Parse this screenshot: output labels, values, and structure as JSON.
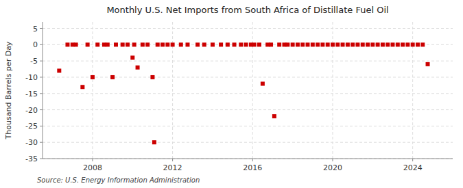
{
  "chart_data": {
    "type": "scatter",
    "title": "Monthly U.S. Net Imports from South Africa of Distillate Fuel Oil",
    "y_label": "Thousand Barrels per Day",
    "source": "Source: U.S. Energy Information Administration",
    "color": "#cc0000",
    "marker": "square",
    "grid": true,
    "xlim": [
      2005.5,
      2026.0
    ],
    "ylim": [
      -35,
      7
    ],
    "xticks": [
      2008,
      2012,
      2016,
      2020,
      2024
    ],
    "yticks": [
      5,
      0,
      -5,
      -10,
      -15,
      -20,
      -25,
      -30,
      -35
    ],
    "x": [
      2006.333,
      2006.75,
      2007.0,
      2007.167,
      2007.5,
      2007.75,
      2008.0,
      2008.25,
      2008.583,
      2008.75,
      2009.0,
      2009.167,
      2009.5,
      2009.75,
      2010.0,
      2010.083,
      2010.25,
      2010.5,
      2010.75,
      2011.0,
      2011.083,
      2011.25,
      2011.5,
      2011.75,
      2012.0,
      2012.417,
      2012.75,
      2013.25,
      2013.583,
      2014.0,
      2014.417,
      2014.75,
      2015.083,
      2015.417,
      2015.667,
      2015.917,
      2016.083,
      2016.333,
      2016.5,
      2016.75,
      2016.917,
      2017.083,
      2017.333,
      2017.583,
      2017.75,
      2018.0,
      2018.25,
      2018.5,
      2018.75,
      2019.0,
      2019.25,
      2019.5,
      2019.75,
      2020.0,
      2020.25,
      2020.5,
      2020.75,
      2021.0,
      2021.25,
      2021.5,
      2021.75,
      2022.0,
      2022.25,
      2022.5,
      2022.75,
      2023.0,
      2023.25,
      2023.5,
      2023.75,
      2024.0,
      2024.25,
      2024.5,
      2024.75
    ],
    "values": [
      -8,
      0,
      0,
      0,
      -13,
      0,
      -10,
      0,
      0,
      0,
      -10,
      0,
      0,
      0,
      -4,
      0,
      -7,
      0,
      0,
      -10,
      -30,
      0,
      0,
      0,
      0,
      0,
      0,
      0,
      0,
      0,
      0,
      0,
      0,
      0,
      0,
      0,
      0,
      0,
      -12,
      0,
      0,
      -22,
      0,
      0,
      0,
      0,
      0,
      0,
      0,
      0,
      0,
      0,
      0,
      0,
      0,
      0,
      0,
      0,
      0,
      0,
      0,
      0,
      0,
      0,
      0,
      0,
      0,
      0,
      0,
      0,
      0,
      0,
      -6
    ]
  }
}
